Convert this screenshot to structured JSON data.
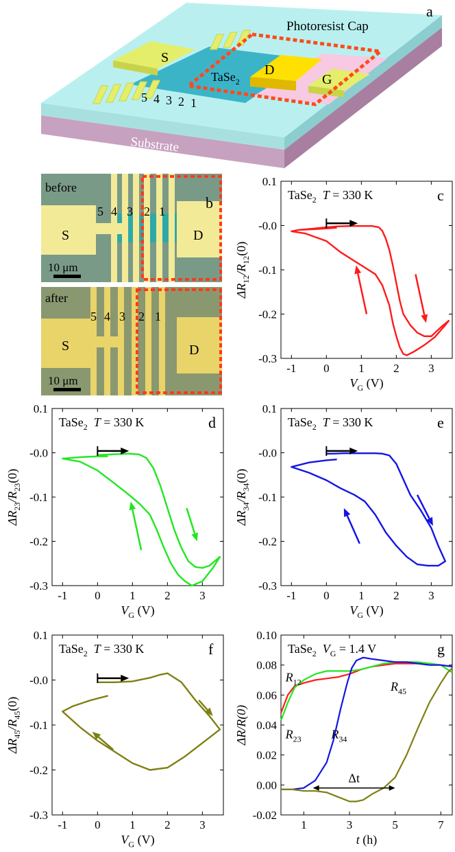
{
  "panel_a": {
    "letter": "a",
    "labels": {
      "cap": "Photoresist Cap",
      "source": "S",
      "drain": "D",
      "gate": "G",
      "material": "TaSe",
      "material_sub": "2",
      "substrate": "Substrate",
      "contacts": [
        "5",
        "4",
        "3",
        "2",
        "1"
      ]
    }
  },
  "panel_b": {
    "letter": "b",
    "before": {
      "tag": "before",
      "numbers": [
        "5",
        "4",
        "3",
        "2",
        "1"
      ],
      "s": "S",
      "d": "D",
      "scale": "10 μm"
    },
    "after": {
      "tag": "after",
      "numbers": [
        "5",
        "4",
        "3",
        "2",
        "1"
      ],
      "s": "S",
      "d": "D",
      "scale": "10 μm"
    }
  },
  "chart_data": [
    {
      "id": "c",
      "type": "line",
      "letter": "c",
      "color": "#ff1a1a",
      "title": {
        "mat": "TaSe",
        "sub": "2",
        "temp_var": "T",
        "temp_rest": " = 330 K"
      },
      "ylabel": {
        "main": "ΔR",
        "sub1": "12",
        "mid": "/R",
        "sub2": "12",
        "end": "(0)"
      },
      "xlabel": {
        "var": "V",
        "sub": "G",
        "unit": " (V)"
      },
      "xlim": [
        -1.3,
        3.6
      ],
      "ylim": [
        -0.3,
        0.1
      ],
      "xticks": [
        "-1",
        "0",
        "1",
        "2",
        "3"
      ],
      "xtick_values": [
        -1,
        0,
        1,
        2,
        3
      ],
      "yticks": [
        "0.1",
        "-0.0",
        "-0.1",
        "-0.2",
        "-0.3"
      ],
      "ytick_values": [
        0.1,
        0.0,
        -0.1,
        -0.2,
        -0.3
      ],
      "x": [
        0.3,
        0.1,
        -0.3,
        -0.8,
        -1.0,
        -0.6,
        0.0,
        0.4,
        0.8,
        1.1,
        1.4,
        1.6,
        1.8,
        1.9,
        2.0,
        2.1,
        2.2,
        2.3,
        2.5,
        2.8,
        3.1,
        3.4,
        3.5,
        3.3,
        3.0,
        2.8,
        2.6,
        2.4,
        2.2,
        2.1,
        2.0,
        1.9,
        1.8,
        1.7,
        1.6,
        1.5,
        1.3,
        1.0,
        0.7,
        0.3,
        0.0,
        -0.4,
        -0.8,
        -1.0
      ],
      "y": [
        -0.005,
        -0.006,
        -0.008,
        -0.01,
        -0.013,
        -0.018,
        -0.035,
        -0.06,
        -0.08,
        -0.095,
        -0.11,
        -0.135,
        -0.18,
        -0.22,
        -0.25,
        -0.275,
        -0.29,
        -0.293,
        -0.285,
        -0.27,
        -0.252,
        -0.225,
        -0.215,
        -0.228,
        -0.25,
        -0.25,
        -0.242,
        -0.225,
        -0.2,
        -0.17,
        -0.13,
        -0.09,
        -0.055,
        -0.03,
        -0.012,
        -0.004,
        -0.001,
        -0.001,
        -0.001,
        -0.002,
        -0.004,
        -0.007,
        -0.01,
        -0.013
      ],
      "arrows": [
        {
          "x1": 0.0,
          "y1": 0.005,
          "x2": 0.9,
          "y2": 0.005,
          "color": "#000000"
        },
        {
          "x1": 2.55,
          "y1": -0.11,
          "x2": 2.85,
          "y2": -0.22,
          "color": "#ff1a1a"
        },
        {
          "x1": 1.15,
          "y1": -0.2,
          "x2": 0.85,
          "y2": -0.09,
          "color": "#ff1a1a"
        }
      ]
    },
    {
      "id": "d",
      "type": "line",
      "letter": "d",
      "color": "#22e622",
      "title": {
        "mat": "TaSe",
        "sub": "2",
        "temp_var": "T",
        "temp_rest": " = 330 K"
      },
      "ylabel": {
        "main": "ΔR",
        "sub1": "23",
        "mid": "/R",
        "sub2": "23",
        "end": "(0)"
      },
      "xlabel": {
        "var": "V",
        "sub": "G",
        "unit": " (V)"
      },
      "xlim": [
        -1.3,
        3.6
      ],
      "ylim": [
        -0.3,
        0.1
      ],
      "xticks": [
        "-1",
        "0",
        "1",
        "2",
        "3"
      ],
      "xtick_values": [
        -1,
        0,
        1,
        2,
        3
      ],
      "yticks": [
        "0.1",
        "-0.0",
        "-0.1",
        "-0.2",
        "-0.3"
      ],
      "ytick_values": [
        0.1,
        0.0,
        -0.1,
        -0.2,
        -0.3
      ],
      "x": [
        0.3,
        0.0,
        -0.5,
        -1.0,
        -0.5,
        0.0,
        0.5,
        0.9,
        1.2,
        1.5,
        1.7,
        1.9,
        2.1,
        2.3,
        2.5,
        2.7,
        3.0,
        3.3,
        3.5,
        3.2,
        3.0,
        2.8,
        2.6,
        2.4,
        2.2,
        2.0,
        1.8,
        1.6,
        1.4,
        1.2,
        0.9,
        0.6,
        0.3,
        0.0
      ],
      "y": [
        -0.008,
        -0.008,
        -0.01,
        -0.013,
        -0.02,
        -0.04,
        -0.07,
        -0.095,
        -0.115,
        -0.14,
        -0.175,
        -0.215,
        -0.25,
        -0.275,
        -0.29,
        -0.3,
        -0.29,
        -0.26,
        -0.235,
        -0.255,
        -0.26,
        -0.258,
        -0.245,
        -0.215,
        -0.175,
        -0.125,
        -0.075,
        -0.035,
        -0.012,
        -0.004,
        -0.002,
        -0.003,
        -0.004,
        -0.005
      ],
      "arrows": [
        {
          "x1": 0.0,
          "y1": 0.004,
          "x2": 0.9,
          "y2": 0.004,
          "color": "#000000"
        },
        {
          "x1": 2.55,
          "y1": -0.125,
          "x2": 2.85,
          "y2": -0.2,
          "color": "#22e622"
        },
        {
          "x1": 1.25,
          "y1": -0.22,
          "x2": 0.95,
          "y2": -0.11,
          "color": "#22e622"
        }
      ]
    },
    {
      "id": "e",
      "type": "line",
      "letter": "e",
      "color": "#1414e6",
      "title": {
        "mat": "TaSe",
        "sub": "2",
        "temp_var": "T",
        "temp_rest": " = 330 K"
      },
      "ylabel": {
        "main": "ΔR",
        "sub1": "34",
        "mid": "/R",
        "sub2": "34",
        "end": "(0)"
      },
      "xlabel": {
        "var": "V",
        "sub": "G",
        "unit": " (V)"
      },
      "xlim": [
        -1.3,
        3.6
      ],
      "ylim": [
        -0.3,
        0.1
      ],
      "xticks": [
        "-1",
        "0",
        "1",
        "2",
        "3"
      ],
      "xtick_values": [
        -1,
        0,
        1,
        2,
        3
      ],
      "yticks": [
        "0.1",
        "-0.0",
        "-0.1",
        "-0.2",
        "-0.3"
      ],
      "ytick_values": [
        0.1,
        0.0,
        -0.1,
        -0.2,
        -0.3
      ],
      "x": [
        0.3,
        0.0,
        -0.5,
        -1.0,
        -0.5,
        0.0,
        0.4,
        0.8,
        1.1,
        1.4,
        1.7,
        2.0,
        2.3,
        2.6,
        2.9,
        3.2,
        3.4,
        3.2,
        3.0,
        2.7,
        2.4,
        2.2,
        2.0,
        1.8,
        1.6,
        1.4,
        1.2,
        0.9,
        0.5,
        0.2,
        0.0
      ],
      "y": [
        -0.015,
        -0.017,
        -0.022,
        -0.032,
        -0.045,
        -0.062,
        -0.08,
        -0.095,
        -0.11,
        -0.14,
        -0.18,
        -0.21,
        -0.235,
        -0.252,
        -0.255,
        -0.255,
        -0.245,
        -0.21,
        -0.17,
        -0.13,
        -0.095,
        -0.06,
        -0.025,
        -0.006,
        -0.002,
        -0.001,
        -0.001,
        -0.001,
        -0.001,
        -0.002,
        -0.002
      ],
      "arrows": [
        {
          "x1": 0.0,
          "y1": 0.004,
          "x2": 0.9,
          "y2": 0.004,
          "color": "#000000"
        },
        {
          "x1": 2.6,
          "y1": -0.095,
          "x2": 3.05,
          "y2": -0.165,
          "color": "#1414e6"
        },
        {
          "x1": 0.95,
          "y1": -0.205,
          "x2": 0.5,
          "y2": -0.125,
          "color": "#1414e6"
        }
      ]
    },
    {
      "id": "f",
      "type": "line",
      "letter": "f",
      "color": "#7f7f14",
      "title": {
        "mat": "TaSe",
        "sub": "2",
        "temp_var": "T",
        "temp_rest": " = 330 K"
      },
      "ylabel": {
        "main": "ΔR",
        "sub1": "45",
        "mid": "/R",
        "sub2": "45",
        "end": "(0)"
      },
      "xlabel": {
        "var": "V",
        "sub": "G",
        "unit": " (V)"
      },
      "xlim": [
        -1.3,
        3.6
      ],
      "ylim": [
        -0.3,
        0.1
      ],
      "xticks": [
        "-1",
        "0",
        "1",
        "2",
        "3"
      ],
      "xtick_values": [
        -1,
        0,
        1,
        2,
        3
      ],
      "yticks": [
        "0.1",
        "-0.0",
        "-0.1",
        "-0.2",
        "-0.3"
      ],
      "ytick_values": [
        0.1,
        0.0,
        -0.1,
        -0.2,
        -0.3
      ],
      "x": [
        0.3,
        -0.2,
        -0.7,
        -1.0,
        -0.5,
        0.0,
        0.5,
        1.0,
        1.5,
        2.0,
        2.5,
        3.0,
        3.5,
        3.2,
        2.8,
        2.4,
        2.0,
        1.8,
        1.5,
        1.0,
        0.5,
        0.0
      ],
      "y": [
        -0.035,
        -0.045,
        -0.058,
        -0.07,
        -0.105,
        -0.135,
        -0.16,
        -0.185,
        -0.2,
        -0.195,
        -0.17,
        -0.14,
        -0.11,
        -0.08,
        -0.045,
        -0.005,
        0.015,
        0.012,
        0.005,
        -0.003,
        -0.005,
        -0.005
      ],
      "arrows": [
        {
          "x1": 0.0,
          "y1": 0.004,
          "x2": 0.9,
          "y2": 0.004,
          "color": "#000000"
        },
        {
          "x1": 2.9,
          "y1": -0.045,
          "x2": 3.3,
          "y2": -0.08,
          "color": "#7f7f14"
        },
        {
          "x1": 0.45,
          "y1": -0.155,
          "x2": -0.15,
          "y2": -0.115,
          "color": "#7f7f14"
        }
      ]
    },
    {
      "id": "g",
      "type": "line",
      "letter": "g",
      "title": {
        "mat": "TaSe",
        "sub": "2",
        "temp_var": "V",
        "temp_var_sub": "G",
        "temp_rest": " = 1.4 V"
      },
      "ylabel": {
        "main": "ΔR/R(0)"
      },
      "xlabel": {
        "var": "t",
        "unit": " (h)"
      },
      "xlim": [
        0,
        7.5
      ],
      "ylim": [
        -0.02,
        0.1
      ],
      "xticks": [
        "1",
        "3",
        "5",
        "7"
      ],
      "xtick_values": [
        1,
        3,
        5,
        7
      ],
      "yticks": [
        "0.10",
        "0.08",
        "0.06",
        "0.04",
        "0.02",
        "0.00",
        "-0.02"
      ],
      "ytick_values": [
        0.1,
        0.08,
        0.06,
        0.04,
        0.02,
        0.0,
        -0.02
      ],
      "series": [
        {
          "name": "R12",
          "label_main": "R",
          "label_sub": "12",
          "color": "#ff1a1a",
          "x": [
            0.0,
            0.3,
            0.6,
            1.0,
            1.5,
            2.0,
            2.5,
            3.0,
            3.5,
            4.0,
            4.5,
            5.0,
            5.5,
            6.0,
            6.5,
            7.0,
            7.5
          ],
          "y": [
            0.048,
            0.06,
            0.066,
            0.068,
            0.07,
            0.071,
            0.072,
            0.074,
            0.077,
            0.079,
            0.08,
            0.081,
            0.081,
            0.081,
            0.081,
            0.08,
            0.079
          ]
        },
        {
          "name": "R23",
          "label_main": "R",
          "label_sub": "23",
          "color": "#22e622",
          "x": [
            0.0,
            0.3,
            0.6,
            1.0,
            1.5,
            2.0,
            2.5,
            3.0,
            3.5,
            4.0,
            4.5,
            5.0,
            5.5,
            6.0,
            6.5,
            7.0,
            7.5
          ],
          "y": [
            0.043,
            0.055,
            0.065,
            0.07,
            0.074,
            0.076,
            0.076,
            0.076,
            0.077,
            0.079,
            0.081,
            0.082,
            0.082,
            0.082,
            0.081,
            0.08,
            0.075
          ]
        },
        {
          "name": "R34",
          "label_main": "R",
          "label_sub": "34",
          "color": "#1414e6",
          "x": [
            0.0,
            0.5,
            1.0,
            1.5,
            2.0,
            2.3,
            2.6,
            2.9,
            3.1,
            3.3,
            3.6,
            4.0,
            4.5,
            5.0,
            5.5,
            6.0,
            6.5,
            7.0,
            7.5
          ],
          "y": [
            -0.003,
            -0.003,
            -0.002,
            0.003,
            0.015,
            0.03,
            0.05,
            0.068,
            0.078,
            0.083,
            0.085,
            0.084,
            0.083,
            0.082,
            0.082,
            0.081,
            0.08,
            0.08,
            0.079
          ]
        },
        {
          "name": "R45",
          "label_main": "R",
          "label_sub": "45",
          "color": "#7f7f14",
          "x": [
            0.0,
            0.5,
            1.0,
            1.5,
            2.0,
            2.5,
            3.0,
            3.3,
            3.6,
            4.0,
            4.5,
            5.0,
            5.5,
            6.0,
            6.5,
            7.0,
            7.3,
            7.5
          ],
          "y": [
            -0.003,
            -0.003,
            -0.004,
            -0.004,
            -0.005,
            -0.008,
            -0.011,
            -0.011,
            -0.01,
            -0.006,
            -0.002,
            0.005,
            0.02,
            0.038,
            0.055,
            0.068,
            0.075,
            0.078
          ]
        }
      ],
      "delta": {
        "label": "Δt",
        "x1": 1.4,
        "x2": 5.0,
        "y": -0.002
      }
    }
  ]
}
